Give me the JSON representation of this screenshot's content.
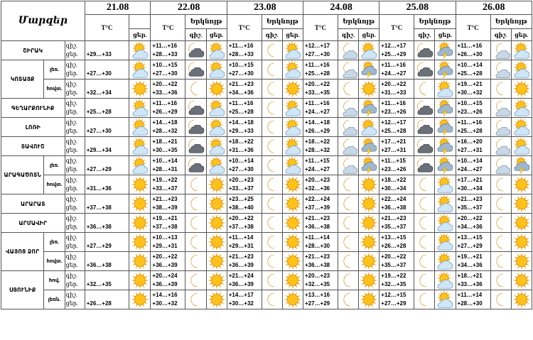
{
  "header": {
    "corner": "Մարզեր",
    "dates": [
      "21.08",
      "22.08",
      "23.08",
      "24.08",
      "25.08",
      "26.08"
    ],
    "temp_label": "T°C",
    "sky_label": "Երկնոյթ",
    "night_label": "գիշ.",
    "day_label": "ցեր."
  },
  "row_labels": {
    "night": "գիշ.",
    "day": "ցեր."
  },
  "rows": [
    {
      "region": "ՇԻՐԱԿ",
      "sub": "",
      "d21": {
        "t": "+29…+33",
        "i": "sun-cloud"
      },
      "days": [
        {
          "n": "+11…+16",
          "d": "+28…+33",
          "in": "moon-cloud-dark",
          "id": "sun-cloud"
        },
        {
          "n": "+11…+16",
          "d": "+28…+33",
          "in": "moon",
          "id": "sun-cloud"
        },
        {
          "n": "+12…+17",
          "d": "+27…+30",
          "in": "moon-cloud",
          "id": "sun-cloud"
        },
        {
          "n": "+12…+17",
          "d": "+25…+29",
          "in": "moon-cloud-dark",
          "id": "sun-storm"
        },
        {
          "n": "+11…+16",
          "d": "+26…+30",
          "in": "moon-cloud",
          "id": "sun-cloud"
        }
      ]
    },
    {
      "region": "ԿՈՏԱՅՔ",
      "sub": "լեռ.",
      "d21": {
        "t": "+27…+30",
        "i": "sun-cloud"
      },
      "days": [
        {
          "n": "+10…+15",
          "d": "+27…+30",
          "in": "moon-cloud-dark",
          "id": "sun-cloud"
        },
        {
          "n": "+10…+15",
          "d": "+27…+30",
          "in": "moon",
          "id": "sun-cloud"
        },
        {
          "n": "+11…+16",
          "d": "+25…+28",
          "in": "moon-cloud",
          "id": "sun-storm"
        },
        {
          "n": "+11…+16",
          "d": "+24…+27",
          "in": "moon-cloud-dark",
          "id": "sun-storm"
        },
        {
          "n": "+10…+14",
          "d": "+25…+28",
          "in": "moon-cloud",
          "id": "sun-cloud"
        }
      ]
    },
    {
      "region": "",
      "sub": "հովտ.",
      "d21": {
        "t": "+32…+34",
        "i": "sun"
      },
      "days": [
        {
          "n": "+20…+22",
          "d": "+33…+36",
          "in": "moon",
          "id": "sun"
        },
        {
          "n": "+21…+23",
          "d": "+34…+36",
          "in": "moon",
          "id": "sun"
        },
        {
          "n": "+20…+22",
          "d": "+33…+35",
          "in": "moon",
          "id": "sun"
        },
        {
          "n": "+20…+22",
          "d": "+31…+33",
          "in": "moon",
          "id": "sun-cloud"
        },
        {
          "n": "+19…+21",
          "d": "+30…+32",
          "in": "moon",
          "id": "sun"
        }
      ]
    },
    {
      "region": "ԳԵՂԱՐՔՈՒՆԻՔ",
      "sub": "",
      "d21": {
        "t": "+25…+28",
        "i": "sun-cloud"
      },
      "days": [
        {
          "n": "+11…+16",
          "d": "+26…+29",
          "in": "moon-cloud-dark",
          "id": "sun-cloud"
        },
        {
          "n": "+11…+16",
          "d": "+25…+28",
          "in": "moon",
          "id": "sun-cloud"
        },
        {
          "n": "+11…+16",
          "d": "+24…+27",
          "in": "moon-cloud",
          "id": "sun-storm"
        },
        {
          "n": "+11…+16",
          "d": "+23…+26",
          "in": "moon-cloud-dark",
          "id": "sun-storm"
        },
        {
          "n": "+10…+15",
          "d": "+23…+26",
          "in": "moon-cloud",
          "id": "sun-cloud"
        }
      ]
    },
    {
      "region": "ԼՈՌԻ",
      "sub": "",
      "d21": {
        "t": "+27…+30",
        "i": "sun-cloud"
      },
      "days": [
        {
          "n": "+14…+18",
          "d": "+28…+32",
          "in": "moon-cloud-dark",
          "id": "sun-cloud"
        },
        {
          "n": "+14…+18",
          "d": "+29…+33",
          "in": "moon",
          "id": "sun-cloud"
        },
        {
          "n": "+14…+18",
          "d": "+26…+29",
          "in": "moon-cloud",
          "id": "sun-cloud"
        },
        {
          "n": "+12…+17",
          "d": "+25…+28",
          "in": "moon-cloud-dark",
          "id": "sun-storm"
        },
        {
          "n": "+11…+16",
          "d": "+25…+28",
          "in": "moon-cloud",
          "id": "sun-cloud"
        }
      ]
    },
    {
      "region": "ՏԱՎՈՒՇ",
      "sub": "",
      "d21": {
        "t": "+29…+34",
        "i": "sun-cloud"
      },
      "days": [
        {
          "n": "+18…+21",
          "d": "+30…+35",
          "in": "moon-cloud-dark",
          "id": "sun-cloud"
        },
        {
          "n": "+18…+22",
          "d": "+31…+36",
          "in": "moon",
          "id": "sun-cloud"
        },
        {
          "n": "+18…+22",
          "d": "+28…+32",
          "in": "moon-cloud",
          "id": "sun-storm"
        },
        {
          "n": "+17…+21",
          "d": "+27…+31",
          "in": "moon-cloud-dark",
          "id": "sun-storm"
        },
        {
          "n": "+16…+20",
          "d": "+27…+31",
          "in": "moon-cloud",
          "id": "sun-cloud"
        }
      ]
    },
    {
      "region": "ԱՐԱԳԱԾՈՏՆ",
      "sub": "լեռ.",
      "d21": {
        "t": "+27…+29",
        "i": "sun-cloud"
      },
      "days": [
        {
          "n": "+10…+14",
          "d": "+28…+31",
          "in": "moon-cloud-dark",
          "id": "sun-cloud"
        },
        {
          "n": "+10…+14",
          "d": "+27…+30",
          "in": "moon",
          "id": "sun-cloud"
        },
        {
          "n": "+11…+15",
          "d": "+24…+27",
          "in": "moon-cloud",
          "id": "sun-storm"
        },
        {
          "n": "+11…+15",
          "d": "+23…+26",
          "in": "moon-cloud-dark",
          "id": "sun-storm"
        },
        {
          "n": "+10…+14",
          "d": "+24…+27",
          "in": "moon-cloud",
          "id": "sun-storm"
        }
      ]
    },
    {
      "region": "",
      "sub": "հովտ.",
      "d21": {
        "t": "+31…+36",
        "i": "sun"
      },
      "days": [
        {
          "n": "+19…+22",
          "d": "+33…+37",
          "in": "moon",
          "id": "sun"
        },
        {
          "n": "+20…+23",
          "d": "+33…+37",
          "in": "moon",
          "id": "sun"
        },
        {
          "n": "+20…+23",
          "d": "+32…+36",
          "in": "moon",
          "id": "sun"
        },
        {
          "n": "+18…+22",
          "d": "+30…+34",
          "in": "moon",
          "id": "sun-cloud"
        },
        {
          "n": "+17…+21",
          "d": "+30…+34",
          "in": "moon",
          "id": "sun"
        }
      ]
    },
    {
      "region": "ԱՐԱՐԱՏ",
      "sub": "",
      "d21": {
        "t": "+37…+38",
        "i": "sun"
      },
      "days": [
        {
          "n": "+21…+23",
          "d": "+38…+39",
          "in": "moon",
          "id": "sun"
        },
        {
          "n": "+23…+25",
          "d": "+38…+40",
          "in": "moon",
          "id": "sun"
        },
        {
          "n": "+22…+24",
          "d": "+37…+39",
          "in": "moon",
          "id": "sun"
        },
        {
          "n": "+22…+24",
          "d": "+36…+38",
          "in": "moon",
          "id": "sun-cloud"
        },
        {
          "n": "+21…+23",
          "d": "+35…+37",
          "in": "moon",
          "id": "sun"
        }
      ]
    },
    {
      "region": "ԱՐՄԱՎԻՐ",
      "sub": "",
      "d21": {
        "t": "+36…+38",
        "i": "sun"
      },
      "days": [
        {
          "n": "+19…+21",
          "d": "+37…+38",
          "in": "moon",
          "id": "sun"
        },
        {
          "n": "+20…+22",
          "d": "+37…+38",
          "in": "moon",
          "id": "sun"
        },
        {
          "n": "+21…+23",
          "d": "+36…+38",
          "in": "moon",
          "id": "sun"
        },
        {
          "n": "+21…+23",
          "d": "+35…+37",
          "in": "moon",
          "id": "sun-cloud"
        },
        {
          "n": "+20…+22",
          "d": "+34…+36",
          "in": "moon",
          "id": "sun"
        }
      ]
    },
    {
      "region": "ՎԱՅՈՑ ՁՈՐ",
      "sub": "լեռ.",
      "d21": {
        "t": "+27…+29",
        "i": "sun"
      },
      "days": [
        {
          "n": "+10…+13",
          "d": "+29…+31",
          "in": "moon",
          "id": "sun"
        },
        {
          "n": "+11…+14",
          "d": "+29…+31",
          "in": "moon",
          "id": "sun"
        },
        {
          "n": "+11…+14",
          "d": "+28…+30",
          "in": "moon",
          "id": "sun"
        },
        {
          "n": "+13…+15",
          "d": "+26…+28",
          "in": "moon",
          "id": "sun-cloud"
        },
        {
          "n": "+13…+15",
          "d": "+27…+29",
          "in": "moon",
          "id": "sun"
        }
      ]
    },
    {
      "region": "",
      "sub": "հովտ.",
      "d21": {
        "t": "+36…+38",
        "i": "sun"
      },
      "days": [
        {
          "n": "+20…+22",
          "d": "+36…+39",
          "in": "moon",
          "id": "sun"
        },
        {
          "n": "+21…+23",
          "d": "+36…+39",
          "in": "moon",
          "id": "sun"
        },
        {
          "n": "+21…+23",
          "d": "+36…+38",
          "in": "moon",
          "id": "sun"
        },
        {
          "n": "+20…+22",
          "d": "+35…+37",
          "in": "moon",
          "id": "sun-cloud"
        },
        {
          "n": "+19…+21",
          "d": "+34…+36",
          "in": "moon",
          "id": "sun"
        }
      ]
    },
    {
      "region": "ՍՅՈՒՆԻՔ",
      "sub": "հով.",
      "d21": {
        "t": "+32…+35",
        "i": "sun"
      },
      "days": [
        {
          "n": "+20…+24",
          "d": "+36…+39",
          "in": "moon",
          "id": "sun"
        },
        {
          "n": "+21…+24",
          "d": "+36…+39",
          "in": "moon",
          "id": "sun"
        },
        {
          "n": "+20…+23",
          "d": "+32…+35",
          "in": "moon",
          "id": "sun"
        },
        {
          "n": "+19…+22",
          "d": "+32…+35",
          "in": "moon",
          "id": "sun-cloud"
        },
        {
          "n": "+18…+21",
          "d": "+33…+36",
          "in": "moon",
          "id": "sun"
        }
      ]
    },
    {
      "region": "",
      "sub": "լեռն.",
      "d21": {
        "t": "+26…+28",
        "i": "sun"
      },
      "days": [
        {
          "n": "+14…+16",
          "d": "+30…+32",
          "in": "moon",
          "id": "sun"
        },
        {
          "n": "+14…+17",
          "d": "+30…+32",
          "in": "moon",
          "id": "sun"
        },
        {
          "n": "+13…+16",
          "d": "+27…+29",
          "in": "moon",
          "id": "sun"
        },
        {
          "n": "+12…+15",
          "d": "+27…+29",
          "in": "moon",
          "id": "sun-cloud"
        },
        {
          "n": "+11…+14",
          "d": "+28…+30",
          "in": "moon",
          "id": "sun"
        }
      ]
    }
  ]
}
